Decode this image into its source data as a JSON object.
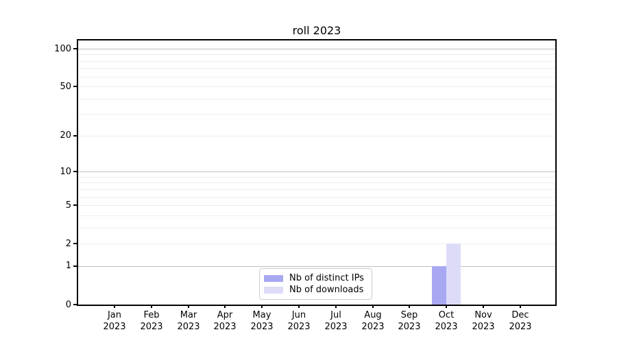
{
  "figure": {
    "background": "#ffffff"
  },
  "chart_data": {
    "type": "bar",
    "title": "roll 2023",
    "categories": [
      {
        "month": "Jan",
        "year": "2023"
      },
      {
        "month": "Feb",
        "year": "2023"
      },
      {
        "month": "Mar",
        "year": "2023"
      },
      {
        "month": "Apr",
        "year": "2023"
      },
      {
        "month": "May",
        "year": "2023"
      },
      {
        "month": "Jun",
        "year": "2023"
      },
      {
        "month": "Jul",
        "year": "2023"
      },
      {
        "month": "Aug",
        "year": "2023"
      },
      {
        "month": "Sep",
        "year": "2023"
      },
      {
        "month": "Oct",
        "year": "2023"
      },
      {
        "month": "Nov",
        "year": "2023"
      },
      {
        "month": "Dec",
        "year": "2023"
      }
    ],
    "series": [
      {
        "name": "Nb of distinct IPs",
        "color": "#a8a8f2",
        "values": [
          0,
          0,
          0,
          0,
          0,
          0,
          0,
          0,
          0,
          1,
          0,
          0
        ]
      },
      {
        "name": "Nb of downloads",
        "color": "#dcdcf8",
        "values": [
          0,
          0,
          0,
          0,
          0,
          0,
          0,
          0,
          0,
          2,
          0,
          0
        ]
      }
    ],
    "xlabel": "",
    "ylabel": "",
    "yscale": "log1p",
    "ylim": [
      0,
      100
    ],
    "yticks": [
      0,
      1,
      2,
      5,
      10,
      20,
      50,
      100
    ],
    "grid": {
      "major_values": [
        1,
        10,
        100
      ],
      "minor_values": [
        2,
        3,
        4,
        5,
        6,
        7,
        8,
        9,
        20,
        30,
        40,
        50,
        60,
        70,
        80,
        90
      ],
      "major_color": "#bdbdbd",
      "minor_color": "#eeeeee"
    },
    "legend_position": "lower center"
  }
}
